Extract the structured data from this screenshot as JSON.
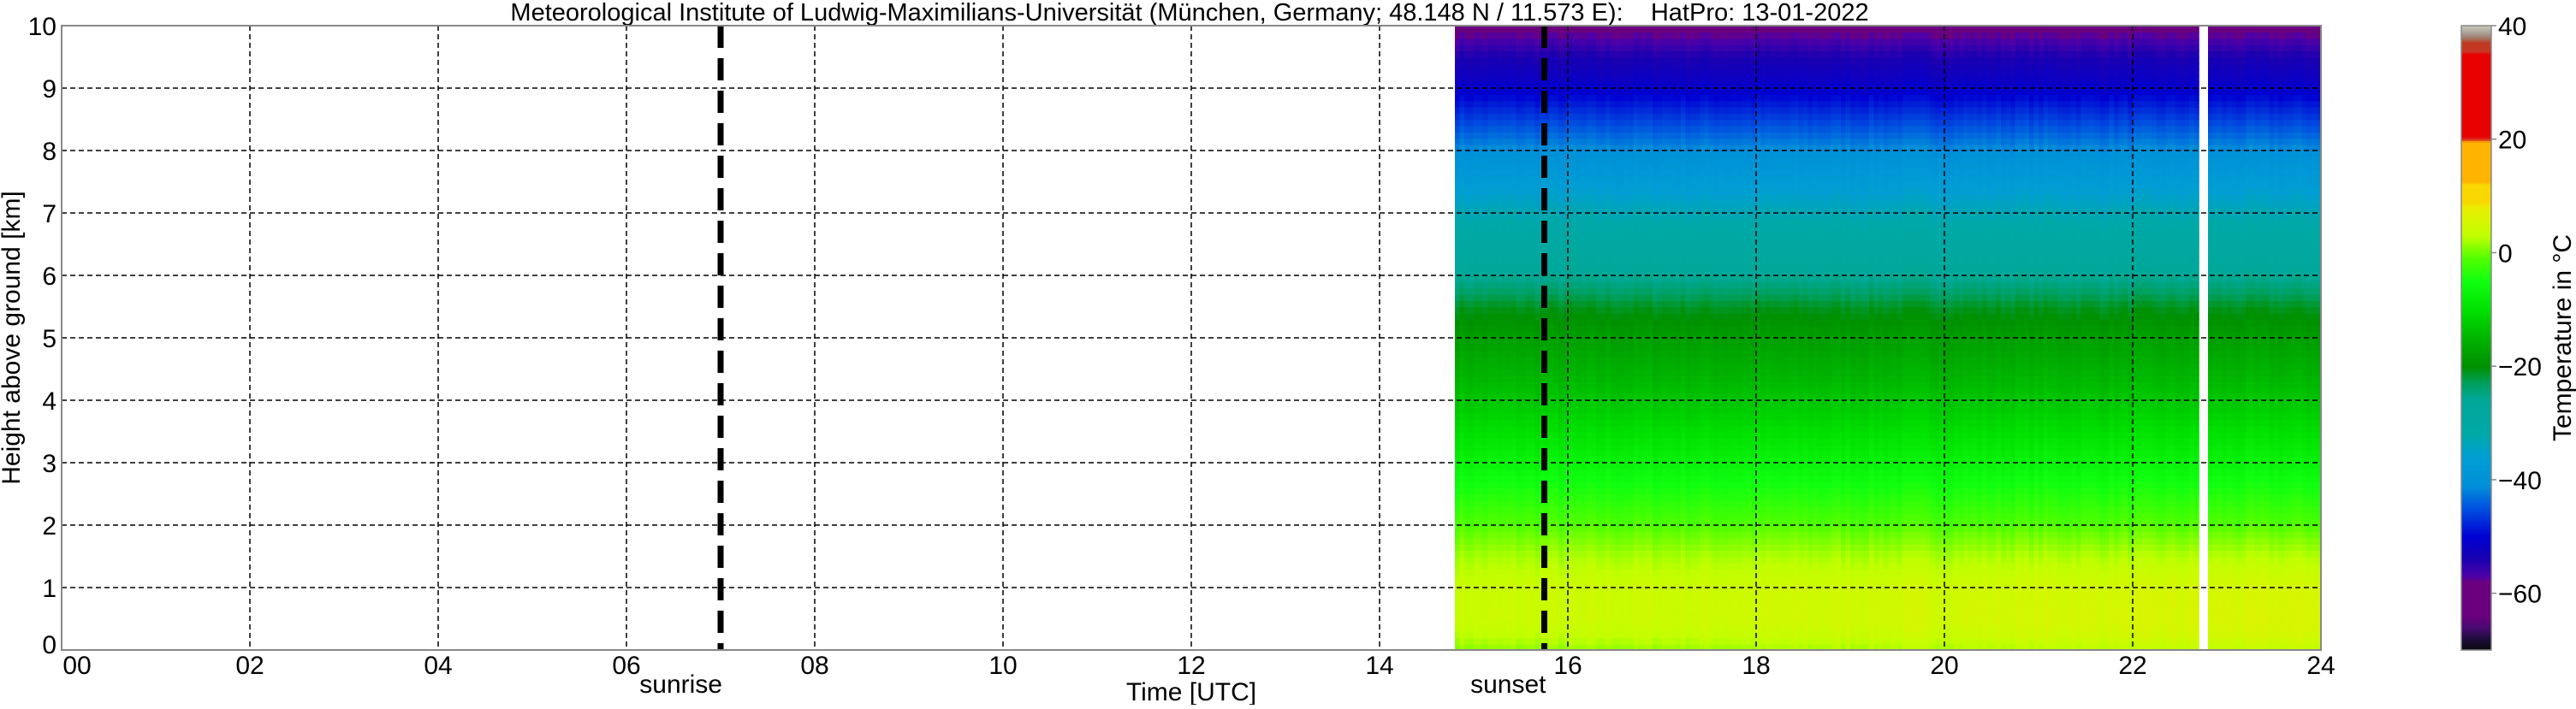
{
  "chart_data": {
    "type": "heatmap",
    "title": "Meteorological Institute of Ludwig-Maximilians-Universität (München, Germany; 48.148 N / 11.573 E):    HatPro: 13-01-2022",
    "xlabel": "Time [UTC]",
    "ylabel": "Height above ground [km]",
    "xlim": [
      0,
      24
    ],
    "ylim": [
      0,
      10
    ],
    "xticks": [
      "00",
      "02",
      "04",
      "06",
      "08",
      "10",
      "12",
      "14",
      "16",
      "18",
      "20",
      "22",
      "24"
    ],
    "yticks": [
      "0",
      "1",
      "2",
      "3",
      "4",
      "5",
      "6",
      "7",
      "8",
      "9",
      "10"
    ],
    "grid": true,
    "data_time_range_utc": [
      14.8,
      24
    ],
    "missing_data_gap_utc": [
      22.72,
      22.8
    ],
    "temperature_profile": {
      "height_km": [
        0,
        0.25,
        0.5,
        1,
        1.5,
        2,
        2.5,
        3,
        4,
        5,
        5.5,
        6,
        7,
        8,
        8.5,
        9,
        9.5,
        10
      ],
      "temperature_c": [
        1,
        3,
        4,
        4,
        2,
        -1,
        -4,
        -7,
        -13,
        -18,
        -21,
        -26,
        -33,
        -41,
        -46,
        -51,
        -54,
        -59
      ]
    },
    "annotations": [
      {
        "label": "sunrise",
        "time_utc": 7.0
      },
      {
        "label": "sunset",
        "time_utc": 15.75
      }
    ],
    "colorbar": {
      "label": "Temperature in $^\\circ$C",
      "label_display": "Temperature in °C",
      "range": [
        -70,
        40
      ],
      "ticks": [
        "40",
        "20",
        "0",
        "−20",
        "−40",
        "−60"
      ],
      "tick_values": [
        40,
        20,
        0,
        -20,
        -40,
        -60
      ],
      "colormap": [
        [
          -70,
          "#0a0a0a"
        ],
        [
          -68,
          "#1e0c3c"
        ],
        [
          -66,
          "#4a0a72"
        ],
        [
          -64,
          "#6a007e"
        ],
        [
          -58,
          "#6a007e"
        ],
        [
          -57,
          "#5000a8"
        ],
        [
          -54,
          "#1a00b0"
        ],
        [
          -50,
          "#0000d2"
        ],
        [
          -45,
          "#0050e0"
        ],
        [
          -41,
          "#0090d8"
        ],
        [
          -36,
          "#009ed4"
        ],
        [
          -32,
          "#00a8a8"
        ],
        [
          -26,
          "#00a898"
        ],
        [
          -23,
          "#00a060"
        ],
        [
          -20,
          "#009000"
        ],
        [
          -15,
          "#00b400"
        ],
        [
          -10,
          "#00e000"
        ],
        [
          -5,
          "#10ff10"
        ],
        [
          -1,
          "#50ff00"
        ],
        [
          3,
          "#c0ff00"
        ],
        [
          8,
          "#eaee00"
        ],
        [
          9,
          "#f8d800"
        ],
        [
          12,
          "#f8d800"
        ],
        [
          12.5,
          "#ffb400"
        ],
        [
          19.5,
          "#ffb400"
        ],
        [
          20,
          "#d83020"
        ],
        [
          20.5,
          "#e80000"
        ],
        [
          35,
          "#e80000"
        ],
        [
          35.5,
          "#c83828"
        ],
        [
          37,
          "#c03820"
        ],
        [
          38,
          "#a08070"
        ],
        [
          39,
          "#b0a8a0"
        ],
        [
          40,
          "#c8c8b8"
        ]
      ]
    }
  }
}
